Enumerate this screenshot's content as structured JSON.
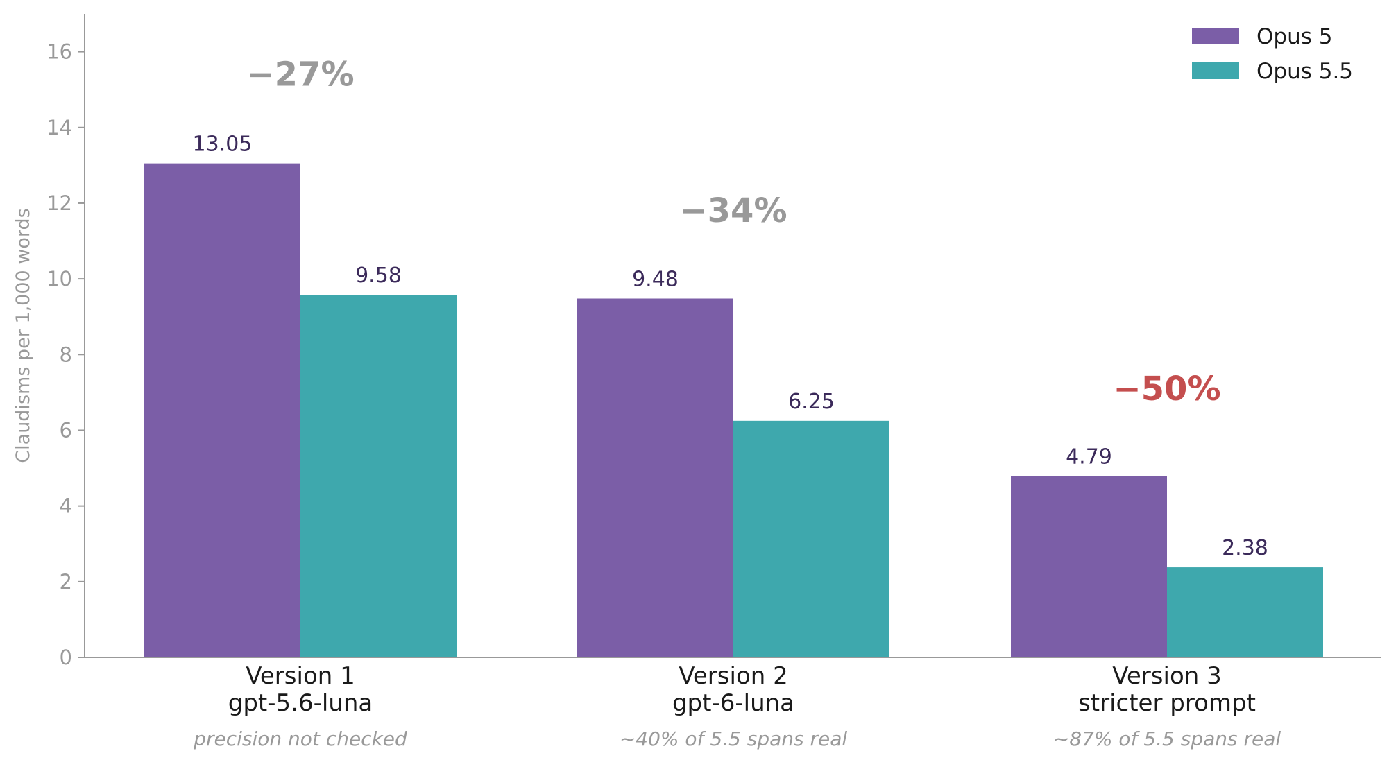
{
  "chart_data": {
    "type": "bar",
    "ylabel": "Claudisms per 1,000 words",
    "ylim": [
      0,
      17
    ],
    "yticks": [
      0,
      2,
      4,
      6,
      8,
      10,
      12,
      14,
      16
    ],
    "grid": false,
    "legend_position": "top-right",
    "categories": [
      {
        "line1": "Version 1",
        "line2": "gpt-5.6-luna",
        "note": "precision not checked"
      },
      {
        "line1": "Version 2",
        "line2": "gpt-6-luna",
        "note": "~40% of 5.5 spans real"
      },
      {
        "line1": "Version 3",
        "line2": "stricter prompt",
        "note": "~87% of 5.5 spans real"
      }
    ],
    "series": [
      {
        "name": "Opus 5",
        "color": "#7b5ea7",
        "values": [
          13.05,
          9.48,
          4.79
        ],
        "labels": [
          "13.05",
          "9.48",
          "4.79"
        ]
      },
      {
        "name": "Opus 5.5",
        "color": "#3ea8ad",
        "values": [
          9.58,
          6.25,
          2.38
        ],
        "labels": [
          "9.58",
          "6.25",
          "2.38"
        ]
      }
    ],
    "annotations": [
      {
        "text": "−27%",
        "color": "#999999",
        "y": 15.1
      },
      {
        "text": "−34%",
        "color": "#999999",
        "y": 11.5
      },
      {
        "text": "−50%",
        "color": "#c44e4e",
        "y": 6.8
      }
    ]
  }
}
